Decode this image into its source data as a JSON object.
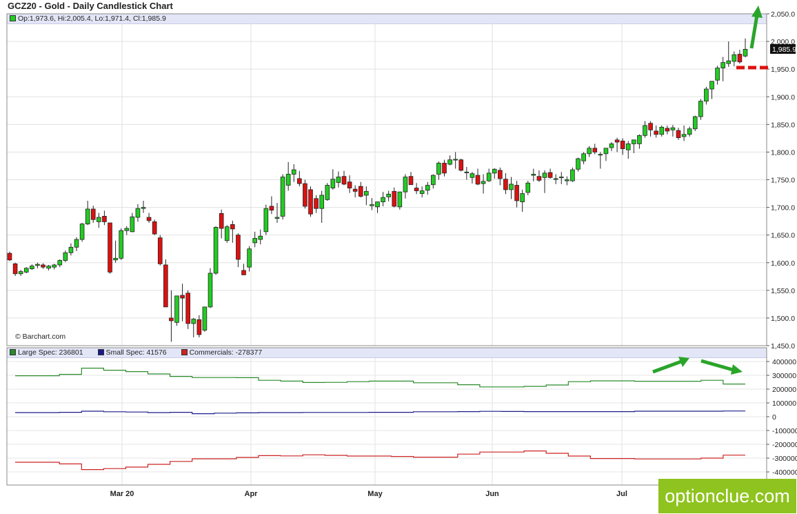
{
  "title": "GCZ20 - Gold - Daily Candlestick Chart",
  "ohlc_text": "Op:1,973.6, Hi:2,005.4, Lo:1,971.4, Cl:1,985.9",
  "copyright": "© Barchart.com",
  "logo": "optionclue.com",
  "last_price_label": "1,985.9",
  "colors": {
    "up": "#22cc22",
    "down": "#dd1111",
    "large_spec": "#2a8a2a",
    "small_spec": "#1a1a8a",
    "commercials": "#cc2222",
    "arrow": "#2aa52a",
    "panel_header": "#e3e6f7"
  },
  "chart_data": [
    {
      "type": "candlestick",
      "title": "GCZ20 - Gold - Daily Candlestick Chart",
      "ylim": [
        1450,
        2050
      ],
      "y_ticks": [
        "1,450.0",
        "1,500.0",
        "1,550.0",
        "1,600.0",
        "1,650.0",
        "1,700.0",
        "1,750.0",
        "1,800.0",
        "1,850.0",
        "1,900.0",
        "1,950.0",
        "2,000.0",
        "2,050.0"
      ],
      "x_ticks": [
        "Mar 20",
        "Apr",
        "May",
        "Jun",
        "Jul"
      ],
      "grid": true,
      "last": {
        "open": 1973.6,
        "high": 2005.4,
        "low": 1971.4,
        "close": 1985.9
      },
      "candles": [
        [
          1617,
          1620,
          1603,
          1605
        ],
        [
          1598,
          1600,
          1576,
          1580
        ],
        [
          1580,
          1587,
          1576,
          1584
        ],
        [
          1583,
          1592,
          1581,
          1590
        ],
        [
          1589,
          1597,
          1587,
          1594
        ],
        [
          1595,
          1600,
          1590,
          1597
        ],
        [
          1596,
          1599,
          1589,
          1592
        ],
        [
          1590,
          1596,
          1586,
          1594
        ],
        [
          1592,
          1598,
          1588,
          1596
        ],
        [
          1596,
          1606,
          1592,
          1604
        ],
        [
          1604,
          1622,
          1601,
          1618
        ],
        [
          1618,
          1635,
          1613,
          1628
        ],
        [
          1628,
          1646,
          1621,
          1642
        ],
        [
          1642,
          1672,
          1638,
          1670
        ],
        [
          1670,
          1712,
          1668,
          1697
        ],
        [
          1697,
          1703,
          1672,
          1678
        ],
        [
          1674,
          1690,
          1663,
          1682
        ],
        [
          1684,
          1694,
          1668,
          1674
        ],
        [
          1672,
          1672,
          1580,
          1583
        ],
        [
          1605,
          1640,
          1600,
          1608
        ],
        [
          1608,
          1662,
          1605,
          1658
        ],
        [
          1658,
          1666,
          1650,
          1662
        ],
        [
          1656,
          1690,
          1655,
          1683
        ],
        [
          1682,
          1706,
          1674,
          1698
        ],
        [
          1698,
          1712,
          1690,
          1700
        ],
        [
          1682,
          1690,
          1672,
          1676
        ],
        [
          1674,
          1678,
          1650,
          1652
        ],
        [
          1645,
          1650,
          1595,
          1598
        ],
        [
          1596,
          1606,
          1520,
          1520
        ],
        [
          1500,
          1550,
          1457,
          1495
        ],
        [
          1492,
          1540,
          1486,
          1540
        ],
        [
          1541,
          1562,
          1494,
          1536
        ],
        [
          1545,
          1550,
          1480,
          1490
        ],
        [
          1490,
          1500,
          1465,
          1498
        ],
        [
          1497,
          1505,
          1465,
          1470
        ],
        [
          1478,
          1520,
          1475,
          1520
        ],
        [
          1520,
          1590,
          1518,
          1581
        ],
        [
          1581,
          1666,
          1578,
          1664
        ],
        [
          1689,
          1696,
          1644,
          1662
        ],
        [
          1640,
          1668,
          1636,
          1665
        ],
        [
          1669,
          1676,
          1636,
          1661
        ],
        [
          1650,
          1653,
          1592,
          1606
        ],
        [
          1586,
          1598,
          1578,
          1578
        ],
        [
          1592,
          1630,
          1584,
          1625
        ],
        [
          1636,
          1656,
          1628,
          1644
        ],
        [
          1642,
          1660,
          1633,
          1648
        ],
        [
          1656,
          1705,
          1650,
          1698
        ],
        [
          1702,
          1720,
          1688,
          1695
        ],
        [
          1680,
          1708,
          1672,
          1682
        ],
        [
          1684,
          1760,
          1678,
          1755
        ],
        [
          1740,
          1782,
          1730,
          1760
        ],
        [
          1760,
          1778,
          1746,
          1768
        ],
        [
          1752,
          1766,
          1738,
          1743
        ],
        [
          1743,
          1750,
          1698,
          1702
        ],
        [
          1732,
          1738,
          1683,
          1688
        ],
        [
          1716,
          1722,
          1690,
          1698
        ],
        [
          1698,
          1730,
          1672,
          1722
        ],
        [
          1714,
          1744,
          1712,
          1740
        ],
        [
          1735,
          1769,
          1732,
          1751
        ],
        [
          1745,
          1765,
          1736,
          1755
        ],
        [
          1756,
          1766,
          1740,
          1742
        ],
        [
          1746,
          1758,
          1726,
          1735
        ],
        [
          1733,
          1740,
          1718,
          1729
        ],
        [
          1738,
          1746,
          1718,
          1720
        ],
        [
          1722,
          1738,
          1704,
          1729
        ],
        [
          1703,
          1717,
          1695,
          1705
        ],
        [
          1701,
          1710,
          1690,
          1710
        ],
        [
          1710,
          1728,
          1702,
          1718
        ],
        [
          1719,
          1730,
          1711,
          1724
        ],
        [
          1729,
          1736,
          1700,
          1702
        ],
        [
          1701,
          1728,
          1696,
          1728
        ],
        [
          1728,
          1760,
          1716,
          1755
        ],
        [
          1756,
          1764,
          1741,
          1741
        ],
        [
          1735,
          1744,
          1724,
          1730
        ],
        [
          1725,
          1738,
          1718,
          1730
        ],
        [
          1731,
          1746,
          1723,
          1740
        ],
        [
          1741,
          1760,
          1734,
          1758
        ],
        [
          1760,
          1783,
          1750,
          1780
        ],
        [
          1780,
          1786,
          1756,
          1762
        ],
        [
          1778,
          1794,
          1776,
          1786
        ],
        [
          1786,
          1800,
          1770,
          1787
        ],
        [
          1786,
          1788,
          1765,
          1767
        ],
        [
          1764,
          1773,
          1750,
          1764
        ],
        [
          1754,
          1764,
          1743,
          1761
        ],
        [
          1758,
          1770,
          1740,
          1742
        ],
        [
          1743,
          1760,
          1725,
          1747
        ],
        [
          1748,
          1770,
          1746,
          1762
        ],
        [
          1762,
          1771,
          1752,
          1769
        ],
        [
          1767,
          1772,
          1740,
          1752
        ],
        [
          1751,
          1762,
          1724,
          1732
        ],
        [
          1732,
          1755,
          1715,
          1742
        ],
        [
          1740,
          1748,
          1700,
          1712
        ],
        [
          1710,
          1732,
          1692,
          1725
        ],
        [
          1727,
          1748,
          1722,
          1744
        ],
        [
          1758,
          1770,
          1747,
          1760
        ],
        [
          1756,
          1767,
          1746,
          1749
        ],
        [
          1754,
          1767,
          1726,
          1762
        ],
        [
          1763,
          1770,
          1752,
          1754
        ],
        [
          1752,
          1760,
          1742,
          1752
        ],
        [
          1754,
          1764,
          1742,
          1755
        ],
        [
          1748,
          1756,
          1740,
          1750
        ],
        [
          1748,
          1772,
          1746,
          1768
        ],
        [
          1769,
          1790,
          1765,
          1788
        ],
        [
          1784,
          1800,
          1778,
          1797
        ],
        [
          1797,
          1811,
          1791,
          1807
        ],
        [
          1807,
          1815,
          1796,
          1800
        ],
        [
          1795,
          1800,
          1770,
          1796
        ],
        [
          1797,
          1805,
          1784,
          1807
        ],
        [
          1808,
          1818,
          1802,
          1815
        ],
        [
          1822,
          1826,
          1800,
          1818
        ],
        [
          1820,
          1825,
          1795,
          1806
        ],
        [
          1804,
          1820,
          1788,
          1815
        ],
        [
          1815,
          1822,
          1798,
          1822
        ],
        [
          1815,
          1832,
          1806,
          1830
        ],
        [
          1830,
          1856,
          1826,
          1848
        ],
        [
          1852,
          1856,
          1828,
          1840
        ],
        [
          1838,
          1848,
          1826,
          1832
        ],
        [
          1832,
          1848,
          1828,
          1845
        ],
        [
          1843,
          1848,
          1832,
          1838
        ],
        [
          1840,
          1849,
          1828,
          1844
        ],
        [
          1839,
          1844,
          1822,
          1826
        ],
        [
          1828,
          1848,
          1820,
          1832
        ],
        [
          1832,
          1846,
          1828,
          1842
        ],
        [
          1842,
          1866,
          1838,
          1864
        ],
        [
          1864,
          1896,
          1858,
          1892
        ],
        [
          1892,
          1918,
          1886,
          1914
        ],
        [
          1914,
          1928,
          1896,
          1928
        ],
        [
          1930,
          1956,
          1922,
          1952
        ],
        [
          1952,
          1972,
          1928,
          1962
        ],
        [
          1960,
          2000,
          1954,
          1965
        ],
        [
          1964,
          1982,
          1955,
          1976
        ],
        [
          1977,
          1985,
          1960,
          1963
        ],
        [
          1973.6,
          2005.4,
          1971.4,
          1985.9
        ]
      ]
    },
    {
      "type": "line",
      "title": "",
      "ylim": [
        -400000,
        400000
      ],
      "y_ticks": [
        "400000",
        "300000",
        "200000",
        "100000",
        "0",
        "-100000",
        "-200000",
        "-300000",
        "-400000"
      ],
      "series": [
        {
          "name": "Large Spec: 236801",
          "values": [
            297000,
            297000,
            307000,
            352000,
            337000,
            327000,
            310000,
            292000,
            284000,
            284000,
            283000,
            264000,
            258000,
            248000,
            249000,
            254000,
            258000,
            258000,
            246000,
            246000,
            232000,
            216000,
            216000,
            220000,
            230000,
            254000,
            260000,
            260000,
            257000,
            257000,
            257000,
            264000,
            236801
          ]
        },
        {
          "name": "Small Spec: 41576",
          "values": [
            30000,
            30000,
            32000,
            40000,
            36000,
            34000,
            30000,
            32000,
            22000,
            26000,
            28000,
            30000,
            30000,
            31000,
            31000,
            31000,
            32000,
            32000,
            36000,
            36000,
            37000,
            39000,
            38000,
            37000,
            37000,
            37000,
            37000,
            37000,
            40000,
            40000,
            40000,
            40000,
            41576
          ]
        },
        {
          "name": "Commercials: -278377",
          "values": [
            -330000,
            -330000,
            -342000,
            -383000,
            -376000,
            -365000,
            -345000,
            -324000,
            -305000,
            -305000,
            -295000,
            -282000,
            -284000,
            -276000,
            -280000,
            -285000,
            -285000,
            -288000,
            -293000,
            -293000,
            -271000,
            -256000,
            -256000,
            -248000,
            -265000,
            -285000,
            -303000,
            -303000,
            -306000,
            -306000,
            -306000,
            -300000,
            -278377
          ]
        }
      ]
    }
  ]
}
